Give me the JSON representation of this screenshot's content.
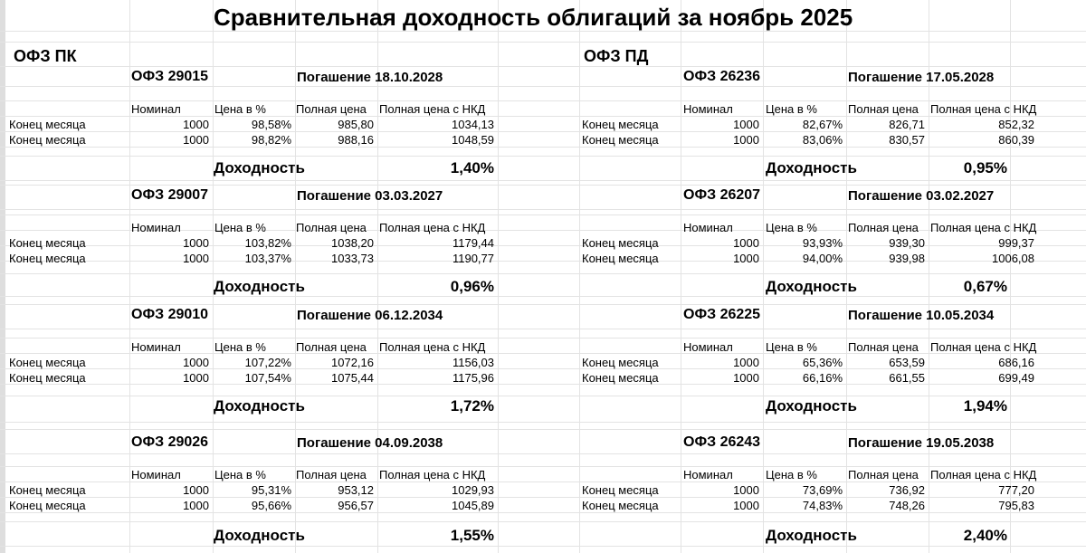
{
  "title": "Сравнительная доходность облигаций за ноябрь 2025",
  "labels": {
    "row": "Конец месяца",
    "nominal": "Номинал",
    "price_pct": "Цена в %",
    "full_price": "Полная цена",
    "full_price_nkd": "Полная цена с НКД",
    "yield": "Доходность"
  },
  "sections": [
    {
      "name": "ОФЗ ПК",
      "bonds": [
        {
          "name": "ОФЗ 29015",
          "maturity": "Погашение 18.10.2028",
          "rows": [
            [
              "1000",
              "98,58%",
              "985,80",
              "1034,13"
            ],
            [
              "1000",
              "98,82%",
              "988,16",
              "1048,59"
            ]
          ],
          "yield": "1,40%"
        },
        {
          "name": "ОФЗ 29007",
          "maturity": "Погашение 03.03.2027",
          "rows": [
            [
              "1000",
              "103,82%",
              "1038,20",
              "1179,44"
            ],
            [
              "1000",
              "103,37%",
              "1033,73",
              "1190,77"
            ]
          ],
          "yield": "0,96%"
        },
        {
          "name": "ОФЗ 29010",
          "maturity": "Погашение 06.12.2034",
          "rows": [
            [
              "1000",
              "107,22%",
              "1072,16",
              "1156,03"
            ],
            [
              "1000",
              "107,54%",
              "1075,44",
              "1175,96"
            ]
          ],
          "yield": "1,72%"
        },
        {
          "name": "ОФЗ 29026",
          "maturity": "Погашение 04.09.2038",
          "rows": [
            [
              "1000",
              "95,31%",
              "953,12",
              "1029,93"
            ],
            [
              "1000",
              "95,66%",
              "956,57",
              "1045,89"
            ]
          ],
          "yield": "1,55%"
        }
      ]
    },
    {
      "name": "ОФЗ ПД",
      "bonds": [
        {
          "name": "ОФЗ 26236",
          "maturity": "Погашение 17.05.2028",
          "rows": [
            [
              "1000",
              "82,67%",
              "826,71",
              "852,32"
            ],
            [
              "1000",
              "83,06%",
              "830,57",
              "860,39"
            ]
          ],
          "yield": "0,95%"
        },
        {
          "name": "ОФЗ 26207",
          "maturity": "Погашение 03.02.2027",
          "rows": [
            [
              "1000",
              "93,93%",
              "939,30",
              "999,37"
            ],
            [
              "1000",
              "94,00%",
              "939,98",
              "1006,08"
            ]
          ],
          "yield": "0,67%"
        },
        {
          "name": "ОФЗ 26225",
          "maturity": "Погашение 10.05.2034",
          "rows": [
            [
              "1000",
              "65,36%",
              "653,59",
              "686,16"
            ],
            [
              "1000",
              "66,16%",
              "661,55",
              "699,49"
            ]
          ],
          "yield": "1,94%"
        },
        {
          "name": "ОФЗ 26243",
          "maturity": "Погашение 19.05.2038",
          "rows": [
            [
              "1000",
              "73,69%",
              "736,92",
              "777,20"
            ],
            [
              "1000",
              "74,83%",
              "748,26",
              "795,83"
            ]
          ],
          "yield": "2,40%"
        }
      ]
    }
  ]
}
